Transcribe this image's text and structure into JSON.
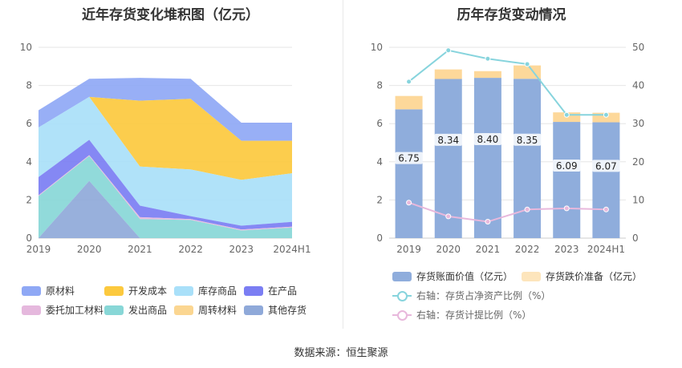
{
  "left_chart": {
    "title": "近年存货变化堆积图（亿元）",
    "categories": [
      "2019",
      "2020",
      "2021",
      "2022",
      "2023",
      "2024H1"
    ],
    "y_ticks": [
      "0",
      "2",
      "4",
      "6",
      "8",
      "10"
    ],
    "legend": [
      {
        "name": "原材料",
        "color": "#8fa8f5"
      },
      {
        "name": "开发成本",
        "color": "#fcc93e"
      },
      {
        "name": "库存商品",
        "color": "#a9e0f9"
      },
      {
        "name": "在产品",
        "color": "#7b7ef3"
      },
      {
        "name": "委托加工材料",
        "color": "#e5b8dd"
      },
      {
        "name": "发出商品",
        "color": "#88d7d7"
      },
      {
        "name": "周转材料",
        "color": "#fbd691"
      },
      {
        "name": "其他存货",
        "color": "#8fa9d9"
      }
    ]
  },
  "right_chart": {
    "title": "历年存货变动情况",
    "categories": [
      "2019",
      "2020",
      "2021",
      "2022",
      "2023",
      "2024H1"
    ],
    "y_left_ticks": [
      "0",
      "2",
      "4",
      "6",
      "8",
      "10"
    ],
    "y_right_ticks": [
      "0",
      "10",
      "20",
      "30",
      "40",
      "50"
    ],
    "legend": [
      {
        "name": "存货账面价值（亿元）",
        "color": "#8faddc"
      },
      {
        "name": "存货跌价准备（亿元）",
        "color": "#fde5bc"
      },
      {
        "name": "右轴：存货占净资产比例（%）",
        "color": "#87d4dd"
      },
      {
        "name": "右轴：存货计提比例（%）",
        "color": "#e8b8dc"
      }
    ]
  },
  "chart_data": [
    {
      "type": "area",
      "title": "近年存货变化堆积图（亿元）",
      "stacked": true,
      "categories": [
        "2019",
        "2020",
        "2021",
        "2022",
        "2023",
        "2024H1"
      ],
      "ylim": [
        0,
        10
      ],
      "series": [
        {
          "name": "其他存货",
          "values": [
            0,
            3.0,
            0,
            0,
            0,
            0
          ],
          "color": "#8fa9d9"
        },
        {
          "name": "周转材料",
          "values": [
            0,
            0,
            0,
            0,
            0,
            0
          ],
          "color": "#fbd691"
        },
        {
          "name": "发出商品",
          "values": [
            2.2,
            1.3,
            1.0,
            0.95,
            0.4,
            0.55
          ],
          "color": "#88d7d7"
        },
        {
          "name": "委托加工材料",
          "values": [
            0.05,
            0.05,
            0.1,
            0.05,
            0.05,
            0.05
          ],
          "color": "#e5b8dd"
        },
        {
          "name": "在产品",
          "values": [
            0.95,
            0.8,
            0.6,
            0.15,
            0.2,
            0.25
          ],
          "color": "#7b7ef3"
        },
        {
          "name": "库存商品",
          "values": [
            2.6,
            2.25,
            2.05,
            2.45,
            2.4,
            2.55
          ],
          "color": "#a9e0f9"
        },
        {
          "name": "开发成本",
          "values": [
            0,
            0,
            3.45,
            3.7,
            2.05,
            1.7
          ],
          "color": "#fcc93e"
        },
        {
          "name": "原材料",
          "values": [
            0.9,
            0.95,
            1.2,
            1.05,
            0.95,
            0.95
          ],
          "color": "#8fa8f5"
        }
      ]
    },
    {
      "type": "bar",
      "title": "历年存货变动情况",
      "stacked": true,
      "categories": [
        "2019",
        "2020",
        "2021",
        "2022",
        "2023",
        "2024H1"
      ],
      "ylim": [
        0,
        10
      ],
      "y2lim": [
        0,
        50
      ],
      "series": [
        {
          "name": "存货账面价值（亿元）",
          "values": [
            6.75,
            8.34,
            8.4,
            8.35,
            6.09,
            6.07
          ],
          "color": "#8faddc",
          "show_labels": true
        },
        {
          "name": "存货跌价准备（亿元）",
          "values": [
            0.7,
            0.5,
            0.35,
            0.7,
            0.5,
            0.5
          ],
          "color": "#fdd89a"
        },
        {
          "name": "右轴：存货占净资产比例（%）",
          "type": "line",
          "axis": "right",
          "values": [
            41.0,
            49.2,
            47.0,
            45.6,
            32.3,
            32.3
          ],
          "color": "#87d4dd"
        },
        {
          "name": "右轴：存货计提比例（%）",
          "type": "line",
          "axis": "right",
          "values": [
            9.3,
            5.7,
            4.3,
            7.5,
            7.8,
            7.5
          ],
          "color": "#e8b8dc"
        }
      ]
    }
  ],
  "footer": {
    "source": "数据来源：恒生聚源"
  }
}
